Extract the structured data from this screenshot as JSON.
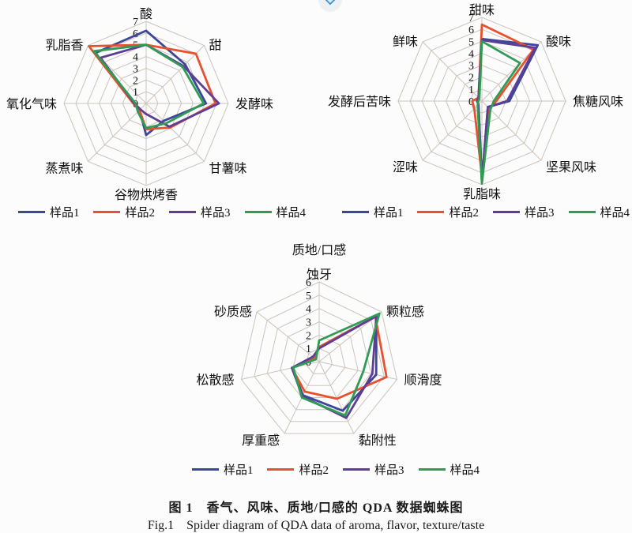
{
  "page": {
    "caption_zh": "图 1　香气、风味、质地/口感的 QDA 数据蜘蛛图",
    "caption_en": "Fig.1　Spider diagram of QDA data of aroma, flavor, texture/taste"
  },
  "colors": {
    "sample1": "#3d4699",
    "sample2": "#e8502e",
    "sample3": "#5e3d96",
    "sample4": "#2f9c55",
    "grid": "#ccc4ba",
    "widget_blue": "#4090d0",
    "widget_fill": "#d9eafc",
    "widget_circle": "#eef1f4"
  },
  "chart_data": [
    {
      "type": "radar",
      "name": "aroma",
      "title": "",
      "axis_max": 7,
      "tick_labels": [
        "7",
        "6",
        "5",
        "4",
        "3",
        "2",
        "1",
        "0"
      ],
      "categories": [
        "酸",
        "甜",
        "发酵味",
        "甘薯味",
        "谷物烘烤香",
        "蒸煮味",
        "氧化气味",
        "乳脂香"
      ],
      "series": [
        {
          "name": "样品1",
          "color": "#3d4699",
          "values": [
            6.2,
            4.7,
            5.1,
            2.1,
            2.7,
            0.8,
            1.0,
            6.1
          ]
        },
        {
          "name": "样品2",
          "color": "#e8502e",
          "values": [
            5.0,
            6.0,
            5.9,
            2.9,
            2.2,
            0.8,
            1.1,
            6.9
          ]
        },
        {
          "name": "样品3",
          "color": "#5e3d96",
          "values": [
            5.0,
            4.5,
            6.2,
            2.8,
            0.9,
            0.7,
            1.0,
            5.5
          ]
        },
        {
          "name": "样品4",
          "color": "#2f9c55",
          "values": [
            5.0,
            4.4,
            4.9,
            2.4,
            2.1,
            1.0,
            0.9,
            6.3
          ]
        }
      ],
      "legend_position": "bottom",
      "grid": true
    },
    {
      "type": "radar",
      "name": "flavor",
      "title": "",
      "axis_max": 7,
      "tick_labels": [
        "7",
        "6",
        "5",
        "4",
        "3",
        "2",
        "1",
        "0"
      ],
      "categories": [
        "甜味",
        "酸味",
        "焦糖风味",
        "坚果风味",
        "乳脂味",
        "涩味",
        "发酵后苦味",
        "鲜味"
      ],
      "series": [
        {
          "name": "样品1",
          "color": "#3d4699",
          "values": [
            5.2,
            6.6,
            2.3,
            0.7,
            6.8,
            0.4,
            0.4,
            0.4
          ]
        },
        {
          "name": "样品2",
          "color": "#e8502e",
          "values": [
            6.4,
            6.1,
            1.2,
            0.9,
            6.3,
            0.9,
            0.8,
            0.4
          ]
        },
        {
          "name": "样品3",
          "color": "#5e3d96",
          "values": [
            5.1,
            6.3,
            2.1,
            0.7,
            6.7,
            0.4,
            0.4,
            0.4
          ]
        },
        {
          "name": "样品4",
          "color": "#2f9c55",
          "values": [
            5.0,
            4.5,
            1.0,
            1.0,
            6.9,
            0.5,
            0.3,
            0.3
          ]
        }
      ],
      "legend_position": "bottom",
      "grid": true
    },
    {
      "type": "radar",
      "name": "texture",
      "title": "质地/口感",
      "axis_max": 6,
      "tick_labels": [
        "6",
        "5",
        "4",
        "3",
        "2",
        "1",
        "0"
      ],
      "categories": [
        "蚀牙",
        "颗粒感",
        "顺滑度",
        "黏附性",
        "厚重感",
        "松散感",
        "砂质感"
      ],
      "series": [
        {
          "name": "样品1",
          "color": "#3d4699",
          "values": [
            1.1,
            5.5,
            4.4,
            4.1,
            2.8,
            2.1,
            0.5
          ]
        },
        {
          "name": "样品2",
          "color": "#e8502e",
          "values": [
            1.1,
            5.4,
            5.2,
            3.1,
            2.5,
            2.1,
            0.5
          ]
        },
        {
          "name": "样品3",
          "color": "#5e3d96",
          "values": [
            1.0,
            5.5,
            4.1,
            4.7,
            2.9,
            2.1,
            0.6
          ]
        },
        {
          "name": "样品4",
          "color": "#2f9c55",
          "values": [
            1.6,
            5.8,
            3.4,
            4.5,
            3.0,
            2.0,
            0.3
          ]
        }
      ],
      "legend_position": "bottom",
      "grid": true
    }
  ]
}
